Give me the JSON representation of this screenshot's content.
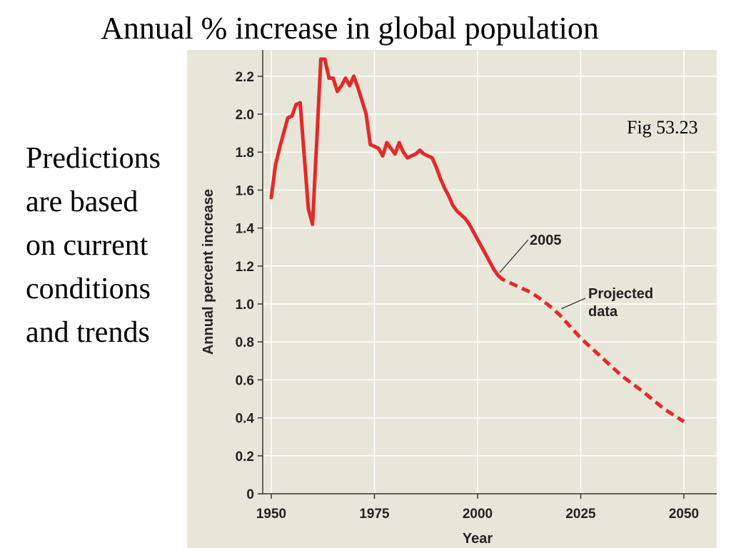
{
  "slide": {
    "title": "Annual % increase in global population",
    "note_lines": [
      "Predictions",
      "are based",
      "on current",
      "conditions",
      "and trends"
    ],
    "fig_ref": "Fig 53.23"
  },
  "chart_data": {
    "type": "line",
    "xlabel": "Year",
    "ylabel": "Annual percent increase",
    "xlim": [
      1948,
      2055
    ],
    "ylim": [
      0,
      2.3
    ],
    "x_ticks": [
      1950,
      1975,
      2000,
      2025,
      2050
    ],
    "y_ticks": [
      0,
      0.2,
      0.4,
      0.6,
      0.8,
      1.0,
      1.2,
      1.4,
      1.6,
      1.8,
      2.0,
      2.2
    ],
    "y_tick_labels": [
      "0",
      "0.2",
      "0.4",
      "0.6",
      "0.8",
      "1.0",
      "1.2",
      "1.4",
      "1.6",
      "1.8",
      "2.0",
      "2.2"
    ],
    "grid": true,
    "background_color": "#e8e6d9",
    "grid_color": "#ffffff",
    "series": [
      {
        "style": "solid",
        "color": "#e32a2a",
        "x": [
          1950,
          1951,
          1952,
          1953,
          1954,
          1955,
          1956,
          1957,
          1958,
          1959,
          1960,
          1961,
          1962,
          1963,
          1964,
          1965,
          1966,
          1967,
          1968,
          1969,
          1970,
          1971,
          1972,
          1973,
          1974,
          1975,
          1976,
          1977,
          1978,
          1979,
          1980,
          1981,
          1982,
          1983,
          1984,
          1985,
          1986,
          1987,
          1988,
          1989,
          1990,
          1991,
          1992,
          1993,
          1994,
          1995,
          1996,
          1997,
          1998,
          1999,
          2000,
          2001,
          2002,
          2003,
          2004,
          2005
        ],
        "y": [
          1.56,
          1.73,
          1.82,
          1.9,
          1.98,
          1.99,
          2.05,
          2.06,
          1.78,
          1.5,
          1.42,
          1.85,
          2.29,
          2.29,
          2.19,
          2.19,
          2.12,
          2.15,
          2.19,
          2.15,
          2.2,
          2.14,
          2.07,
          2.0,
          1.84,
          1.83,
          1.82,
          1.78,
          1.85,
          1.82,
          1.79,
          1.85,
          1.8,
          1.77,
          1.78,
          1.79,
          1.81,
          1.79,
          1.78,
          1.77,
          1.72,
          1.66,
          1.61,
          1.57,
          1.52,
          1.49,
          1.47,
          1.45,
          1.42,
          1.38,
          1.34,
          1.3,
          1.26,
          1.22,
          1.18,
          1.15
        ]
      },
      {
        "style": "dashed",
        "color": "#e32a2a",
        "x": [
          2005,
          2006,
          2008,
          2010,
          2013,
          2015,
          2018,
          2020,
          2025,
          2030,
          2035,
          2040,
          2045,
          2050
        ],
        "y": [
          1.15,
          1.13,
          1.11,
          1.09,
          1.06,
          1.03,
          0.98,
          0.94,
          0.82,
          0.72,
          0.62,
          0.54,
          0.45,
          0.38
        ]
      }
    ],
    "annotations": [
      {
        "lines": [
          "2005"
        ],
        "x": 2005,
        "y": 1.15
      },
      {
        "lines": [
          "Projected",
          "data"
        ],
        "x": 2020,
        "y": 0.96
      }
    ]
  }
}
